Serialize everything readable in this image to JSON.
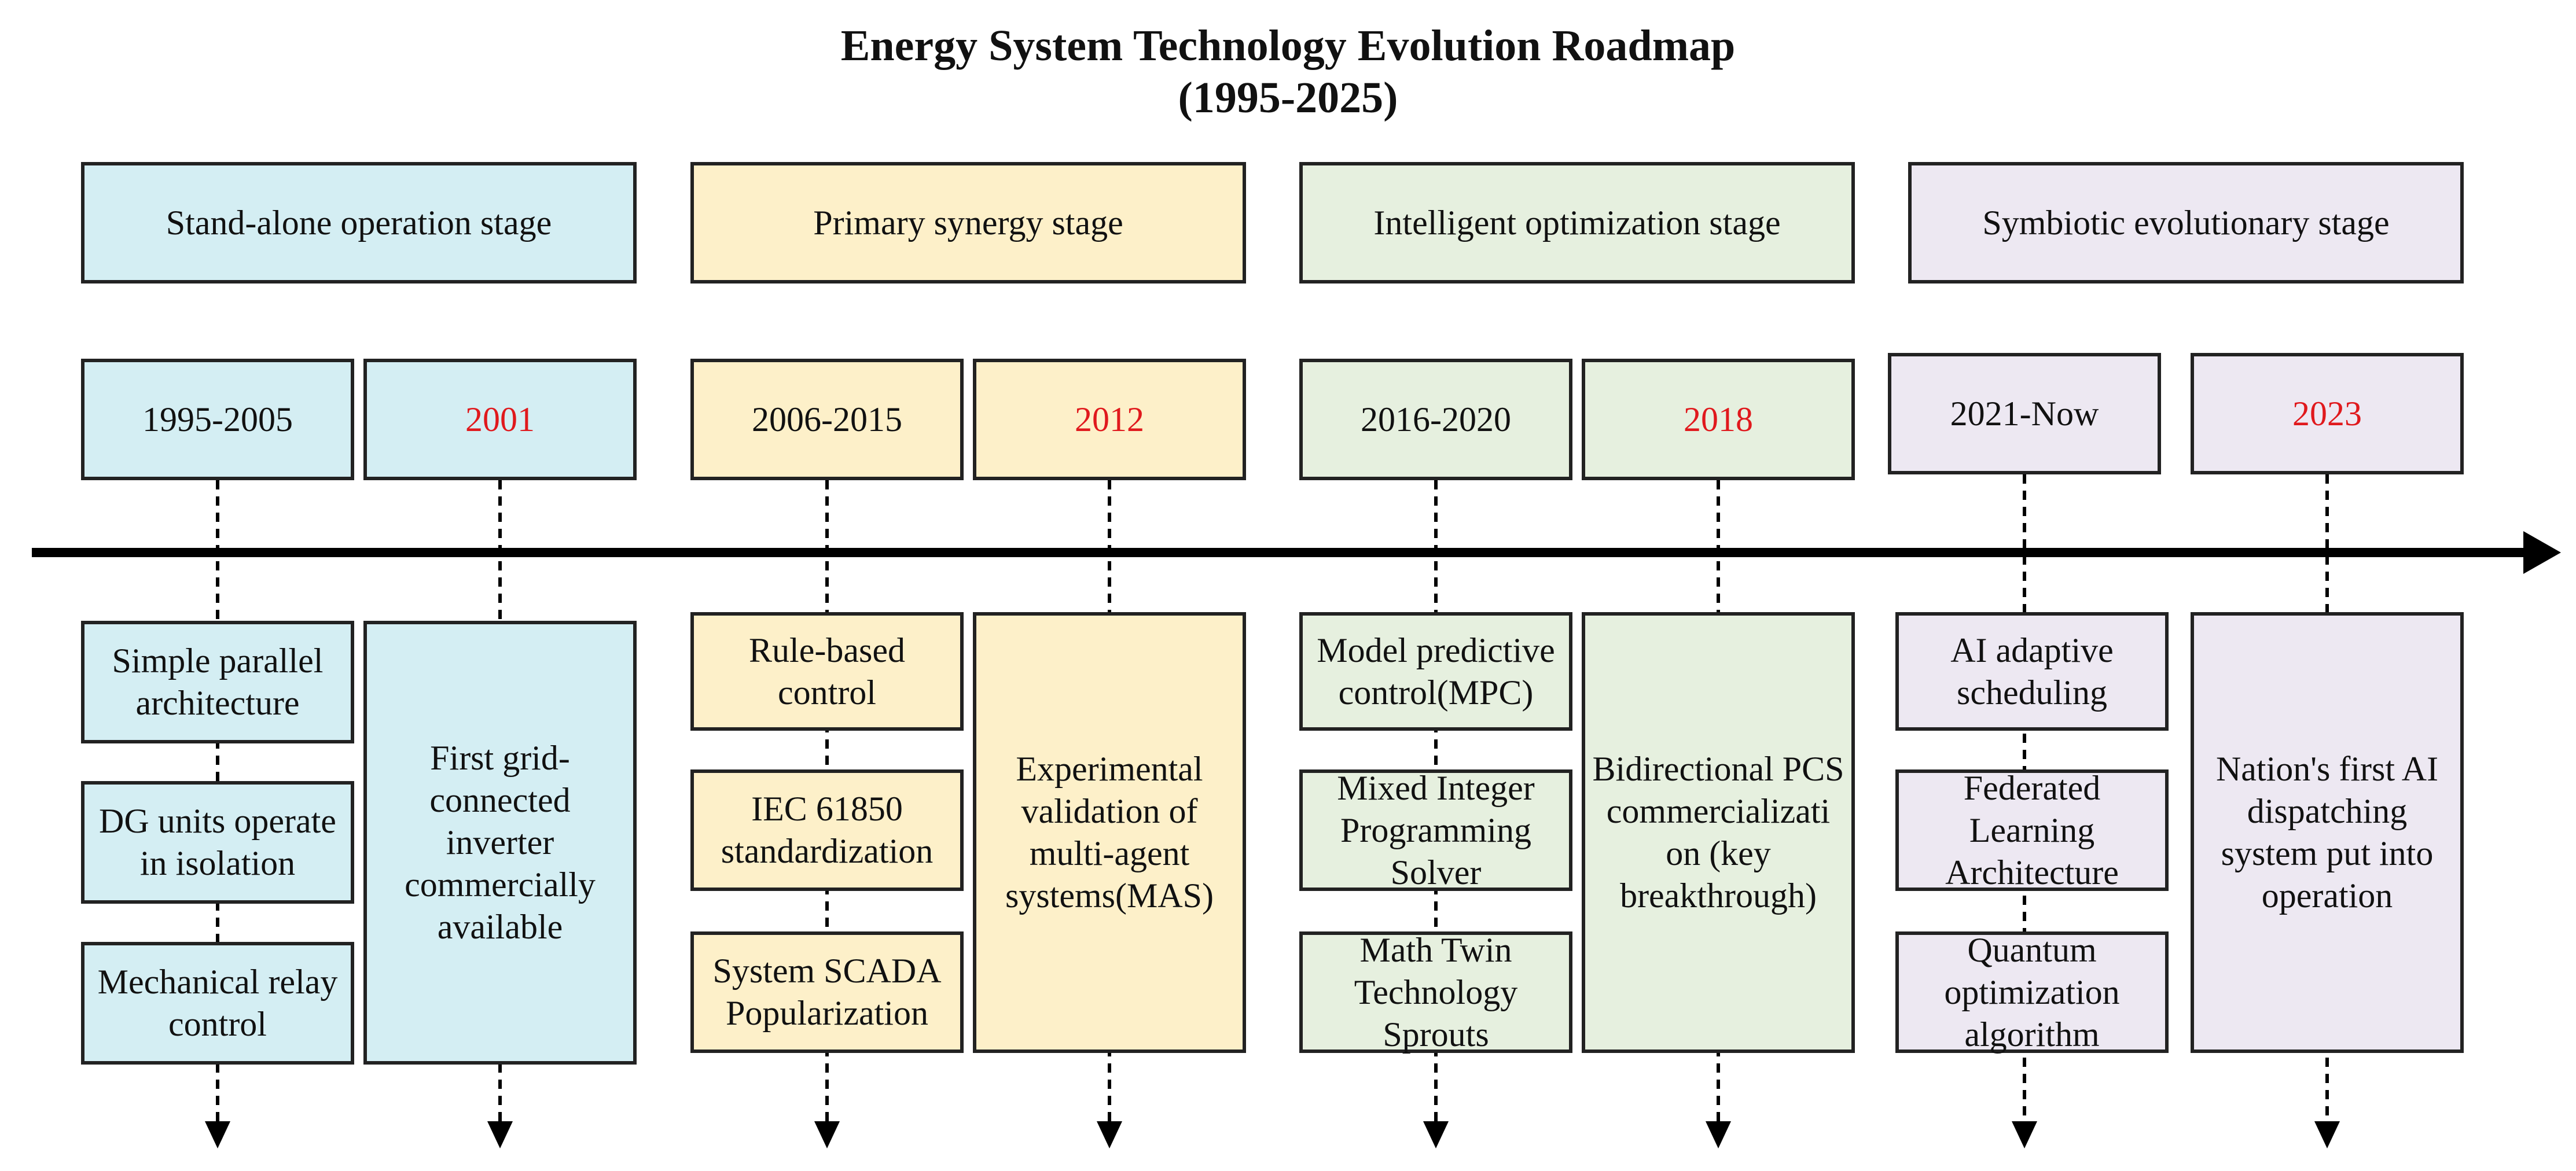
{
  "title": {
    "line1": "Energy System Technology Evolution Roadmap",
    "line2": "(1995-2025)"
  },
  "stages": [
    {
      "label": "Stand-alone operation stage",
      "color": "#d4eef3",
      "periods": [
        {
          "date": "1995-2005",
          "highlight": false,
          "events": [
            "Simple parallel architecture",
            "DG units operate in isolation",
            "Mechanical relay control"
          ]
        },
        {
          "date": "2001",
          "highlight": true,
          "events": [
            "First grid-connected inverter commercially available"
          ]
        }
      ]
    },
    {
      "label": "Primary synergy stage",
      "color": "#fdf0c9",
      "periods": [
        {
          "date": "2006-2015",
          "highlight": false,
          "events": [
            "Rule-based control",
            "IEC 61850 standardization",
            "System SCADA Popularization"
          ]
        },
        {
          "date": "2012",
          "highlight": true,
          "events": [
            "Experimental validation of multi-agent systems(MAS)"
          ]
        }
      ]
    },
    {
      "label": "Intelligent optimization stage",
      "color": "#e6f0df",
      "periods": [
        {
          "date": "2016-2020",
          "highlight": false,
          "events": [
            "Model predictive control(MPC)",
            "Mixed Integer Programming Solver",
            "Math Twin Technology Sprouts"
          ]
        },
        {
          "date": "2018",
          "highlight": true,
          "events": [
            "Bidirectional PCS commercializati on (key breakthrough)"
          ]
        }
      ]
    },
    {
      "label": "Symbiotic evolutionary stage",
      "color": "#ede8f2",
      "periods": [
        {
          "date": "2021-Now",
          "highlight": false,
          "events": [
            "AI adaptive scheduling",
            "Federated Learning Architecture",
            "Quantum optimization algorithm"
          ]
        },
        {
          "date": "2023",
          "highlight": true,
          "events": [
            "Nation's first AI dispatching system put into operation"
          ]
        }
      ]
    }
  ],
  "colors": {
    "highlight_text": "#e0191d",
    "line": "#000000"
  }
}
